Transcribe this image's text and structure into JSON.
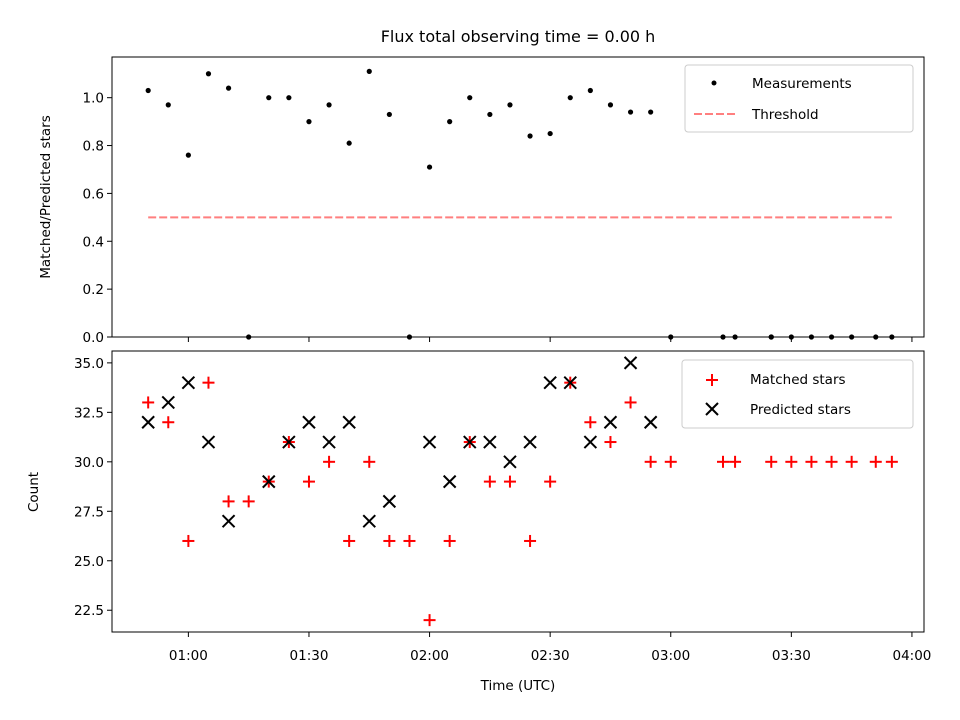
{
  "chart_data": {
    "type": "scatter",
    "title": "Flux total observing time = 0.00 h",
    "xlabel": "Time (UTC)",
    "x_ticks": [
      "01:00",
      "01:30",
      "02:00",
      "02:30",
      "03:00",
      "03:30",
      "04:00"
    ],
    "x_tick_minutes": [
      60,
      90,
      120,
      150,
      180,
      210,
      240
    ],
    "xlim_minutes": [
      41,
      243
    ],
    "top": {
      "ylabel": "Matched/Predicted stars",
      "ylim": [
        0,
        1.17
      ],
      "y_ticks": [
        0.0,
        0.2,
        0.4,
        0.6,
        0.8,
        1.0
      ],
      "y_tick_labels": [
        "0.0",
        "0.2",
        "0.4",
        "0.6",
        "0.8",
        "1.0"
      ],
      "legend_position": "top-right",
      "series": [
        {
          "name": "Measurements",
          "marker": "dot",
          "color": "#000000",
          "x_minutes": [
            55,
            60,
            65,
            70,
            75,
            80,
            85,
            90,
            95,
            100,
            105,
            110,
            115,
            120,
            125,
            130,
            135,
            140,
            145,
            150,
            155,
            160,
            165,
            170,
            175,
            180,
            193,
            196,
            205,
            210,
            215,
            220,
            225,
            231,
            235
          ],
          "values": [
            0.97,
            0.76,
            1.1,
            1.04,
            0.0,
            1.0,
            1.0,
            0.9,
            0.97,
            0.81,
            1.11,
            0.93,
            0.0,
            0.71,
            0.9,
            1.0,
            0.93,
            0.97,
            0.84,
            0.85,
            1.0,
            1.03,
            0.97,
            0.94,
            0.94,
            0.0,
            0.0,
            0.0,
            0.0,
            0.0,
            0.0,
            0.0,
            0.0,
            0.0,
            0.0
          ]
        },
        {
          "name": "Measurements",
          "marker": "dot",
          "color": "#000000",
          "x_minutes": [
            50,
            205
          ],
          "values": [
            1.03,
            0.0
          ]
        },
        {
          "name": "Threshold",
          "marker": "dashed-line",
          "color": "#ff7f7f",
          "x_minutes": [
            50,
            235
          ],
          "values": [
            0.5,
            0.5
          ]
        }
      ]
    },
    "bottom": {
      "ylabel": "Count",
      "ylim": [
        21.4,
        35.6
      ],
      "y_ticks": [
        22.5,
        25.0,
        27.5,
        30.0,
        32.5,
        35.0
      ],
      "y_tick_labels": [
        "22.5",
        "25.0",
        "27.5",
        "30.0",
        "32.5",
        "35.0"
      ],
      "legend_position": "top-right",
      "series": [
        {
          "name": "Matched stars",
          "marker": "plus",
          "color": "#ff0000",
          "x_minutes": [
            50,
            55,
            60,
            65,
            70,
            75,
            80,
            85,
            90,
            95,
            100,
            105,
            110,
            115,
            120,
            125,
            130,
            135,
            140,
            145,
            150,
            155,
            160,
            165,
            170,
            175,
            180,
            193,
            196,
            205,
            210,
            215,
            220,
            225,
            231,
            235
          ],
          "values": [
            33,
            32,
            26,
            34,
            28,
            28,
            29,
            31,
            29,
            30,
            26,
            30,
            26,
            26,
            22,
            26,
            31,
            29,
            29,
            26,
            29,
            34,
            32,
            31,
            33,
            30,
            30,
            30,
            30,
            30,
            30,
            30,
            30,
            30,
            30,
            30
          ]
        },
        {
          "name": "Predicted stars",
          "marker": "x",
          "color": "#000000",
          "x_minutes": [
            50,
            55,
            60,
            65,
            70,
            80,
            85,
            90,
            95,
            100,
            105,
            110,
            120,
            125,
            130,
            135,
            140,
            145,
            150,
            155,
            160,
            165,
            170,
            175
          ],
          "values": [
            32,
            33,
            34,
            31,
            27,
            29,
            31,
            32,
            31,
            32,
            27,
            28,
            31,
            29,
            31,
            31,
            30,
            31,
            34,
            34,
            31,
            32,
            35,
            32
          ]
        }
      ]
    }
  }
}
